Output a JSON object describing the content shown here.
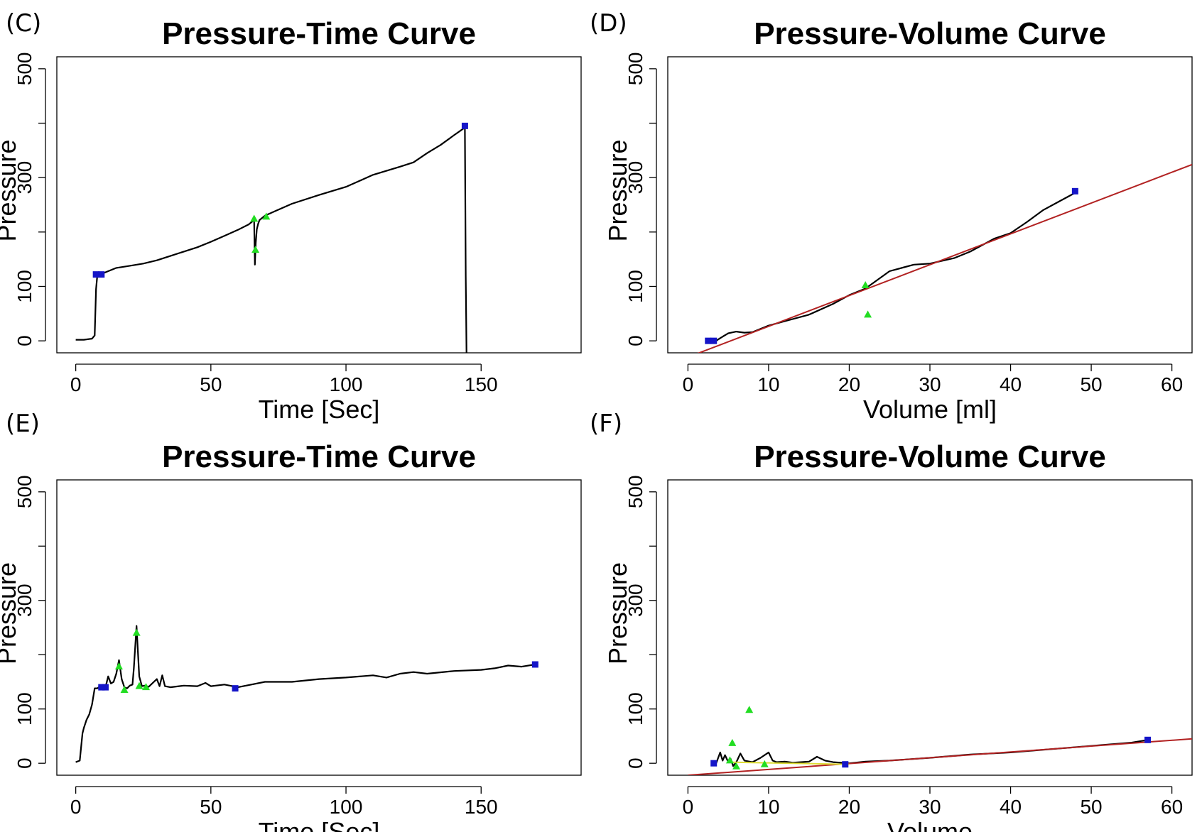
{
  "chart_data": [
    {
      "panel": "(C)",
      "type": "line",
      "title": "Pressure-Time Curve",
      "xlabel": "Time [Sec]",
      "ylabel": "Pressure",
      "xlim": [
        -7,
        187
      ],
      "ylim": [
        -22,
        522
      ],
      "xticks": [
        0,
        50,
        100,
        150
      ],
      "yticks": [
        0,
        100,
        200,
        300,
        400,
        500
      ],
      "yticklabels": [
        "0",
        "100",
        "",
        "300",
        "",
        "500"
      ],
      "series": [
        {
          "style": "curve",
          "color": "#000000",
          "x": [
            0,
            3,
            6,
            7,
            7.5,
            8,
            10,
            12,
            15,
            20,
            25,
            30,
            35,
            40,
            45,
            50,
            55,
            60,
            64,
            66,
            66.3,
            66.6,
            67,
            67.5,
            68,
            70,
            75,
            80,
            90,
            100,
            105,
            110,
            120,
            125,
            130,
            135,
            140,
            144,
            144.3,
            144.6
          ],
          "y": [
            2,
            2,
            4,
            10,
            95,
            122,
            124,
            128,
            134,
            138,
            142,
            148,
            156,
            164,
            172,
            182,
            193,
            204,
            214,
            222,
            140,
            180,
            205,
            215,
            222,
            230,
            241,
            252,
            268,
            283,
            294,
            305,
            320,
            328,
            345,
            360,
            378,
            392,
            120,
            -22
          ]
        },
        {
          "style": "square",
          "color": "#1515c8",
          "x": [
            7.5,
            9.5,
            144
          ],
          "y": [
            122,
            122,
            395
          ]
        },
        {
          "style": "triangle",
          "color": "#22dd22",
          "x": [
            66,
            66.5,
            70.5
          ],
          "y": [
            224,
            167,
            228
          ]
        }
      ]
    },
    {
      "panel": "(D)",
      "type": "line",
      "title": "Pressure-Volume Curve",
      "xlabel": "Volume [ml]",
      "ylabel": "Pressure",
      "xlim": [
        -2.5,
        62.5
      ],
      "ylim": [
        -22,
        522
      ],
      "xticks": [
        0,
        10,
        20,
        30,
        40,
        50,
        60
      ],
      "yticks": [
        0,
        100,
        200,
        300,
        400,
        500
      ],
      "yticklabels": [
        "0",
        "100",
        "",
        "300",
        "",
        "500"
      ],
      "series": [
        {
          "style": "curve",
          "color": "#000000",
          "x": [
            3.5,
            4,
            5,
            6,
            7,
            8,
            10,
            12,
            15,
            18,
            20,
            22,
            25,
            28,
            30,
            33,
            35,
            38,
            40,
            42,
            44,
            46,
            48
          ],
          "y": [
            0,
            5,
            14,
            17,
            15,
            16,
            28,
            36,
            48,
            68,
            84,
            96,
            128,
            140,
            142,
            152,
            164,
            188,
            198,
            218,
            240,
            256,
            272
          ]
        },
        {
          "style": "line",
          "color": "#b22222",
          "x": [
            0,
            62.5
          ],
          "y": [
            -30,
            324
          ]
        },
        {
          "style": "square",
          "color": "#1515c8",
          "x": [
            2.5,
            3.2,
            48
          ],
          "y": [
            0,
            0,
            275
          ]
        },
        {
          "style": "triangle",
          "color": "#22dd22",
          "x": [
            22,
            22.3
          ],
          "y": [
            102,
            48
          ]
        }
      ]
    },
    {
      "panel": "(E)",
      "type": "line",
      "title": "Pressure-Time Curve",
      "xlabel": "Time [Sec]",
      "ylabel": "Pressure",
      "xlim": [
        -7,
        187
      ],
      "ylim": [
        -22,
        522
      ],
      "xticks": [
        0,
        50,
        100,
        150
      ],
      "yticks": [
        0,
        100,
        200,
        300,
        400,
        500
      ],
      "yticklabels": [
        "0",
        "100",
        "",
        "300",
        "",
        "500"
      ],
      "series": [
        {
          "style": "curve",
          "color": "#000000",
          "x": [
            0,
            1.5,
            2.5,
            3,
            4,
            5,
            6,
            7,
            8,
            9,
            10,
            11,
            12,
            13,
            14,
            15,
            16,
            17,
            18,
            19,
            20,
            21,
            21.5,
            22.5,
            23.5,
            24.5,
            25.5,
            27,
            30,
            31,
            32,
            33,
            35,
            40,
            45,
            48,
            50,
            55,
            60,
            65,
            70,
            80,
            90,
            100,
            110,
            115,
            120,
            125,
            130,
            140,
            150,
            155,
            160,
            165,
            170
          ],
          "y": [
            2,
            5,
            55,
            65,
            80,
            90,
            108,
            138,
            138,
            142,
            143,
            140,
            160,
            147,
            150,
            165,
            190,
            155,
            140,
            138,
            143,
            145,
            175,
            253,
            160,
            142,
            143,
            141,
            155,
            142,
            162,
            142,
            140,
            143,
            142,
            148,
            142,
            145,
            140,
            145,
            150,
            150,
            155,
            158,
            162,
            158,
            165,
            168,
            165,
            170,
            172,
            175,
            180,
            178,
            182
          ]
        },
        {
          "style": "square",
          "color": "#1515c8",
          "x": [
            9.5,
            11,
            59,
            170
          ],
          "y": [
            140,
            140,
            138,
            182
          ]
        },
        {
          "style": "triangle",
          "color": "#22dd22",
          "x": [
            16,
            18,
            22.5,
            23.5,
            26
          ],
          "y": [
            178,
            135,
            240,
            142,
            140
          ]
        }
      ]
    },
    {
      "panel": "(F)",
      "type": "line",
      "title": "Pressure-Volume Curve",
      "xlabel": "Volume",
      "ylabel": "Pressure",
      "xlim": [
        -2.5,
        62.5
      ],
      "ylim": [
        -22,
        522
      ],
      "xticks": [
        0,
        10,
        20,
        30,
        40,
        50,
        60
      ],
      "yticks": [
        0,
        100,
        200,
        300,
        400,
        500
      ],
      "yticklabels": [
        "0",
        "100",
        "",
        "300",
        "",
        "500"
      ],
      "series": [
        {
          "style": "curve",
          "color": "#000000",
          "x": [
            3.5,
            4,
            4.3,
            4.6,
            5,
            5.3,
            5.6,
            6,
            6.5,
            7,
            8,
            9,
            10,
            10.5,
            11,
            12,
            13,
            14,
            15,
            16,
            17,
            18,
            20,
            22,
            25,
            30,
            35,
            40,
            45,
            50,
            55,
            57
          ],
          "y": [
            0,
            20,
            5,
            15,
            2,
            8,
            -5,
            2,
            18,
            5,
            2,
            10,
            20,
            5,
            2,
            3,
            1,
            2,
            3,
            12,
            5,
            2,
            0,
            3,
            5,
            10,
            16,
            20,
            26,
            32,
            38,
            43
          ]
        },
        {
          "style": "line",
          "color": "#b22222",
          "x": [
            0,
            62.5
          ],
          "y": [
            -22,
            45
          ]
        },
        {
          "style": "line",
          "color": "#dddd33",
          "x": [
            5,
            20
          ],
          "y": [
            2,
            -2
          ]
        },
        {
          "style": "square",
          "color": "#1515c8",
          "x": [
            3.2,
            19.5,
            57
          ],
          "y": [
            0,
            -2,
            43
          ]
        },
        {
          "style": "triangle",
          "color": "#22dd22",
          "x": [
            5.2,
            5.5,
            6,
            7.6,
            9.5
          ],
          "y": [
            5,
            37,
            -6,
            98,
            -2
          ]
        }
      ]
    }
  ]
}
